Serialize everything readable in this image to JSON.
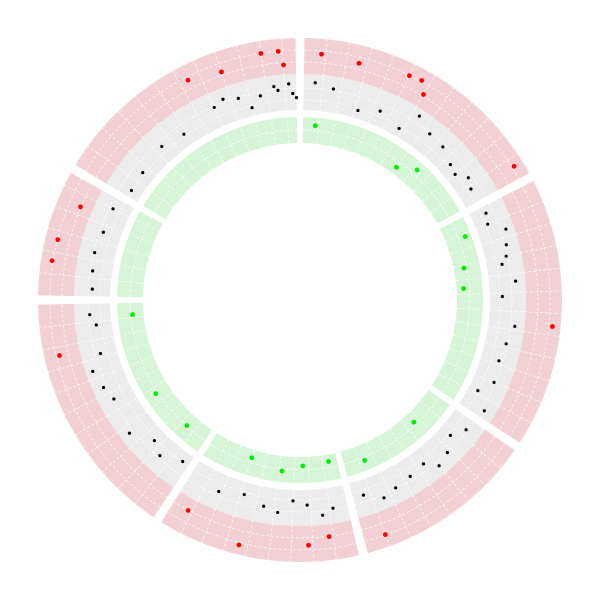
{
  "chart_data": {
    "type": "scatter",
    "subtype": "circos-track-plot",
    "title": "",
    "grid": true,
    "colors": {
      "outer_band": "#f2d0d3",
      "middle_band": "#ececec",
      "inner_band": "#d6f5d6",
      "grid": "#ffffff",
      "outlier_point": "#ff0000",
      "regular_point": "#000000",
      "inner_point": "#00ee00"
    },
    "sectors": [
      {
        "id": 1,
        "start_deg": 1,
        "end_deg": 61
      },
      {
        "id": 2,
        "start_deg": 63,
        "end_deg": 123
      },
      {
        "id": 3,
        "start_deg": 125,
        "end_deg": 165
      },
      {
        "id": 4,
        "start_deg": 167,
        "end_deg": 212
      },
      {
        "id": 5,
        "start_deg": 214,
        "end_deg": 269
      },
      {
        "id": 6,
        "start_deg": 271,
        "end_deg": 299
      },
      {
        "id": 7,
        "start_deg": 301,
        "end_deg": 359
      }
    ],
    "tracks": [
      {
        "name": "",
        "color": "#ff0000",
        "points": [
          [
            5,
            0.6
          ],
          [
            14,
            0.5
          ],
          [
            26,
            0.7
          ],
          [
            29,
            0.75
          ],
          [
            31,
            0.35
          ],
          [
            58,
            0.8
          ],
          [
            96,
            0.85
          ],
          [
            160,
            0.7
          ],
          [
            173,
            0.3
          ],
          [
            178,
            0.55
          ],
          [
            194,
            0.8
          ],
          [
            208,
            0.3
          ],
          [
            257,
            0.6
          ],
          [
            279,
            0.75
          ],
          [
            284,
            0.7
          ],
          [
            293,
            0.3
          ],
          [
            333,
            0.6
          ],
          [
            341,
            0.4
          ],
          [
            351,
            0.7
          ],
          [
            355,
            0.7
          ],
          [
            356,
            0.2
          ]
        ]
      },
      {
        "name": "",
        "color": "#000000",
        "points": [
          [
            4,
            0.85
          ],
          [
            9,
            0.7
          ],
          [
            17,
            0.15
          ],
          [
            23,
            0.4
          ],
          [
            30,
            0.15
          ],
          [
            33,
            0.9
          ],
          [
            38,
            0.6
          ],
          [
            43,
            0.55
          ],
          [
            48,
            0.3
          ],
          [
            51,
            0.2
          ],
          [
            54,
            0.5
          ],
          [
            57,
            0.35
          ],
          [
            65,
            0.4
          ],
          [
            68,
            0.3
          ],
          [
            71,
            0.85
          ],
          [
            75,
            0.7
          ],
          [
            78,
            0.6
          ],
          [
            80,
            0.4
          ],
          [
            85,
            0.8
          ],
          [
            89,
            0.3
          ],
          [
            97,
            0.8
          ],
          [
            102,
            0.6
          ],
          [
            107,
            0.5
          ],
          [
            113,
            0.6
          ],
          [
            117,
            0.2
          ],
          [
            121,
            0.75
          ],
          [
            128,
            0.6
          ],
          [
            132,
            0.3
          ],
          [
            136,
            0.65
          ],
          [
            140,
            0.8
          ],
          [
            143,
            0.4
          ],
          [
            148,
            0.5
          ],
          [
            153,
            0.6
          ],
          [
            157,
            0.75
          ],
          [
            162,
            0.4
          ],
          [
            171,
            0.6
          ],
          [
            174,
            0.8
          ],
          [
            178,
            0.4
          ],
          [
            182,
            0.25
          ],
          [
            186,
            0.7
          ],
          [
            190,
            0.55
          ],
          [
            196,
            0.3
          ],
          [
            203,
            0.5
          ],
          [
            216,
            0.2
          ],
          [
            222,
            0.55
          ],
          [
            226,
            0.3
          ],
          [
            232,
            0.8
          ],
          [
            242,
            0.6
          ],
          [
            246,
            0.75
          ],
          [
            251,
            0.9
          ],
          [
            255,
            0.45
          ],
          [
            263,
            0.4
          ],
          [
            266,
            0.6
          ],
          [
            273,
            0.5
          ],
          [
            278,
            0.55
          ],
          [
            283,
            0.6
          ],
          [
            289,
            0.5
          ],
          [
            296,
            0.5
          ],
          [
            303,
            0.25
          ],
          [
            309,
            0.3
          ],
          [
            318,
            0.45
          ],
          [
            325,
            0.3
          ],
          [
            336,
            0.6
          ],
          [
            339,
            0.75
          ],
          [
            343,
            0.6
          ],
          [
            346,
            0.15
          ],
          [
            349,
            0.5
          ],
          [
            353,
            0.75
          ],
          [
            354,
            0.6
          ],
          [
            357,
            0.8
          ],
          [
            358,
            0.45
          ],
          [
            359,
            0.3
          ]
        ]
      },
      {
        "name": "",
        "color": "#00ee00",
        "points": [
          [
            5,
            0.75
          ],
          [
            36,
            0.2
          ],
          [
            42,
            0.75
          ],
          [
            69,
            0.85
          ],
          [
            79,
            0.35
          ],
          [
            86,
            0.2
          ],
          [
            137,
            0.35
          ],
          [
            158,
            0.65
          ],
          [
            170,
            0.2
          ],
          [
            179,
            0.3
          ],
          [
            186,
            0.6
          ],
          [
            197,
            0.25
          ],
          [
            222,
            0.45
          ],
          [
            237,
            0.6
          ],
          [
            265,
            0.4
          ]
        ]
      }
    ]
  }
}
